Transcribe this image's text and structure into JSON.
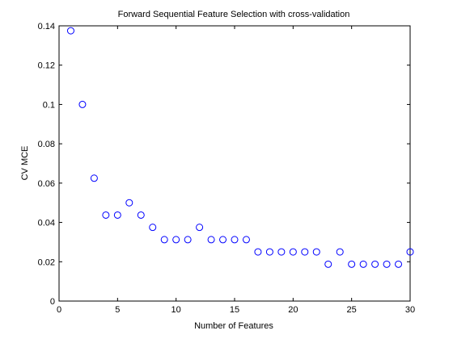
{
  "chart_data": {
    "type": "scatter",
    "title": "Forward Sequential Feature Selection with cross-validation",
    "xlabel": "Number of Features",
    "ylabel": "CV MCE",
    "xlim": [
      0,
      30
    ],
    "ylim": [
      0,
      0.14
    ],
    "xticks": [
      "0",
      "5",
      "10",
      "15",
      "20",
      "25",
      "30"
    ],
    "yticks": [
      "0",
      "0.02",
      "0.04",
      "0.06",
      "0.08",
      "0.1",
      "0.12",
      "0.14"
    ],
    "x": [
      1,
      2,
      3,
      4,
      5,
      6,
      7,
      8,
      9,
      10,
      11,
      12,
      13,
      14,
      15,
      16,
      17,
      18,
      19,
      20,
      21,
      22,
      23,
      24,
      25,
      26,
      27,
      28,
      29,
      30
    ],
    "y": [
      0.1375,
      0.1,
      0.0625,
      0.04375,
      0.04375,
      0.05,
      0.04375,
      0.0375,
      0.03125,
      0.03125,
      0.03125,
      0.0375,
      0.03125,
      0.03125,
      0.03125,
      0.03125,
      0.025,
      0.025,
      0.025,
      0.025,
      0.025,
      0.025,
      0.01875,
      0.025,
      0.01875,
      0.01875,
      0.01875,
      0.01875,
      0.01875,
      0.025
    ],
    "marker": "circle-open",
    "color": "#0000ff",
    "grid": false
  }
}
